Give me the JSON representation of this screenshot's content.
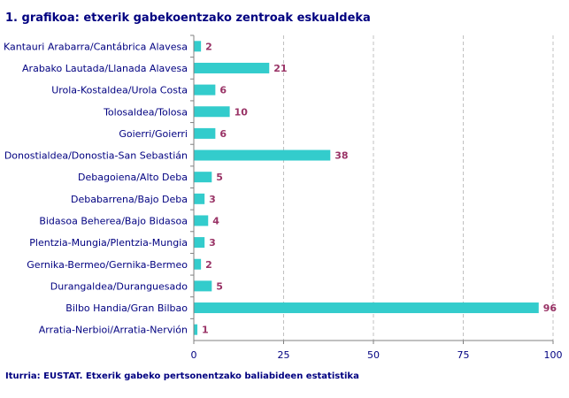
{
  "chart_data": {
    "type": "bar",
    "orientation": "horizontal",
    "title": "1. grafikoa: etxerik gabekoentzako zentroak eskualdeka",
    "source": "Iturria: EUSTAT. Etxerik gabeko pertsonentzako baliabideen estatistika",
    "categories": [
      "Kantauri Arabarra/Cantábrica Alavesa",
      "Arabako Lautada/Llanada Alavesa",
      "Urola-Kostaldea/Urola Costa",
      "Tolosaldea/Tolosa",
      "Goierri/Goierri",
      "Donostialdea/Donostia-San Sebastián",
      "Debagoiena/Alto Deba",
      "Debabarrena/Bajo Deba",
      "Bidasoa Beherea/Bajo Bidasoa",
      "Plentzia-Mungia/Plentzia-Mungia",
      "Gernika-Bermeo/Gernika-Bermeo",
      "Durangaldea/Duranguesado",
      "Bilbo Handia/Gran Bilbao",
      "Arratia-Nerbioi/Arratia-Nervión"
    ],
    "values": [
      2,
      21,
      6,
      10,
      6,
      38,
      5,
      3,
      4,
      3,
      2,
      5,
      96,
      1
    ],
    "xlim": [
      0,
      100
    ],
    "xticks": [
      "0",
      "25",
      "50",
      "75",
      "100"
    ],
    "grid": "vertical dashed",
    "colors": {
      "bar": "#33cccc",
      "label": "#993366",
      "text": "#000080",
      "grid": "#c0c0c0"
    }
  }
}
